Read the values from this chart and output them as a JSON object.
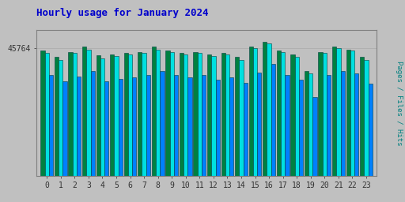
{
  "title": "Hourly usage for January 2024",
  "title_color": "#0000cc",
  "title_fontsize": 9,
  "ylabel_right": "Pages / Files / Hits",
  "ylabel_right_color": "#008080",
  "background_color": "#c0c0c0",
  "plot_bg_color": "#c0c0c0",
  "hours": [
    0,
    1,
    2,
    3,
    4,
    5,
    6,
    7,
    8,
    9,
    10,
    11,
    12,
    13,
    14,
    15,
    16,
    17,
    18,
    19,
    20,
    21,
    22,
    23
  ],
  "ytick_value": 45764,
  "ytick_label": "45764",
  "ymax": 52000,
  "pages": [
    44800,
    42500,
    44200,
    46200,
    43000,
    43400,
    43800,
    44200,
    46200,
    44800,
    43800,
    44200,
    43400,
    43800,
    42500,
    46200,
    48000,
    44800,
    43400,
    37500,
    44200,
    46200,
    45200,
    42500
  ],
  "files": [
    43800,
    41500,
    43800,
    45200,
    42000,
    42800,
    43400,
    43800,
    45200,
    44200,
    43400,
    43800,
    42800,
    43400,
    41500,
    45600,
    47200,
    44200,
    42500,
    36500,
    43800,
    45600,
    44800,
    41500
  ],
  "hits": [
    36000,
    33800,
    35600,
    37500,
    33800,
    34700,
    35200,
    36000,
    37500,
    36000,
    35200,
    36000,
    34200,
    35200,
    33300,
    37000,
    40000,
    36000,
    34200,
    28000,
    36000,
    37500,
    36600,
    32800
  ],
  "color_pages": "#008040",
  "color_files": "#00e0e0",
  "color_hits": "#0080ff",
  "bar_edge_color": "#004040",
  "bar_width": 0.3,
  "font_family": "monospace",
  "font_size_ticks": 7,
  "grid_color": "#aaaaaa",
  "spine_color": "#808080"
}
